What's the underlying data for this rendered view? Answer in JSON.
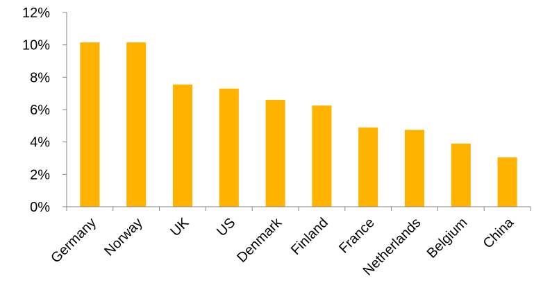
{
  "chart_data": {
    "type": "bar",
    "categories": [
      "Germany",
      "Norway",
      "UK",
      "US",
      "Denmark",
      "Finland",
      "France",
      "Netherlands",
      "Belgium",
      "China"
    ],
    "values": [
      10.15,
      10.15,
      7.55,
      7.3,
      6.6,
      6.25,
      4.9,
      4.75,
      3.9,
      3.05
    ],
    "value_unit": "%",
    "ylim": [
      0,
      12
    ],
    "yticks": [
      0,
      2,
      4,
      6,
      8,
      10,
      12
    ],
    "ytick_labels": [
      "0%",
      "2%",
      "4%",
      "6%",
      "8%",
      "10%",
      "12%"
    ],
    "title": "",
    "xlabel": "",
    "ylabel": "",
    "grid": false,
    "legend": "none",
    "colors": {
      "bar": "#FFB300",
      "axis": "#868686",
      "text": "#000000"
    }
  }
}
